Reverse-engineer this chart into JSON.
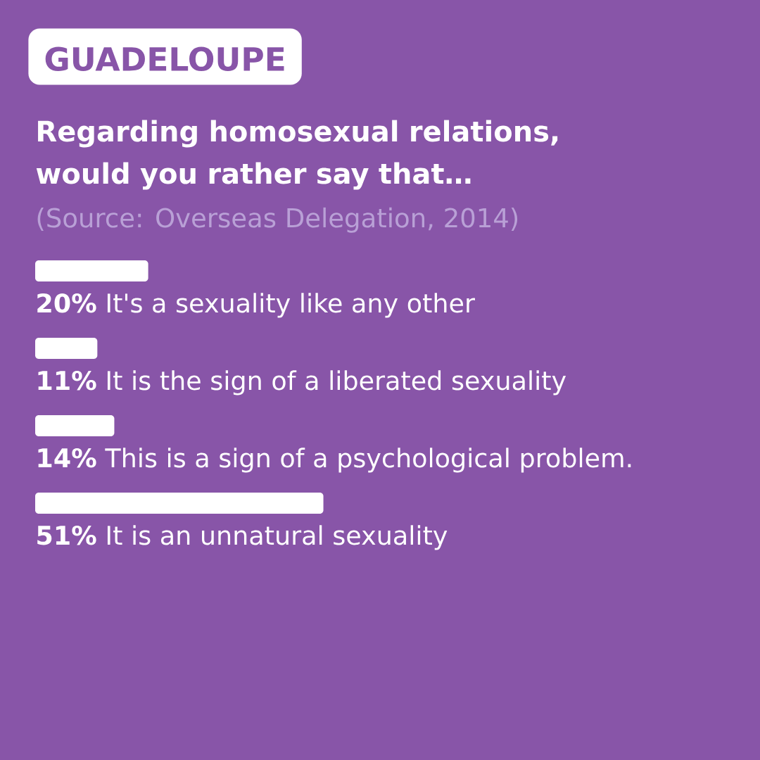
{
  "chart_data": {
    "type": "bar",
    "orientation": "horizontal",
    "title": "Regarding homosexual relations, would you rather say that…",
    "categories": [
      "It's a sexuality like any other",
      "It is the sign of a liberated sexuality",
      "This is a sign of a psychological problem.",
      "It is an unnatural sexuality"
    ],
    "values": [
      20,
      11,
      14,
      51
    ],
    "value_labels": [
      "20%",
      "11%",
      "14%",
      "51%"
    ],
    "color": "#ffffff",
    "annotations": [
      "GUADELOUPE",
      "(Source: Overseas Delegation, 2014)"
    ]
  }
}
